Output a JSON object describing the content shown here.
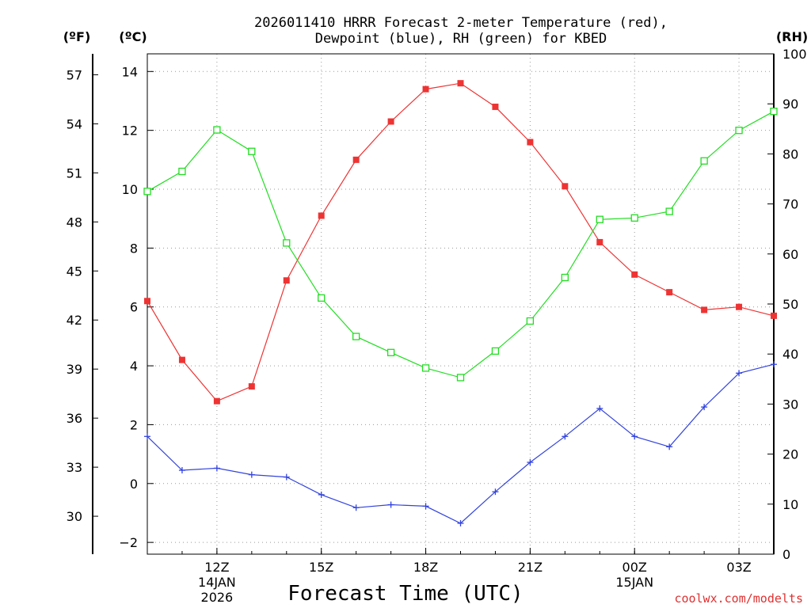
{
  "chart_data": {
    "type": "line",
    "title_line1": "2026011410 HRRR Forecast 2-meter Temperature (red),",
    "title_line2": "Dewpoint (blue), RH (green) for KBED",
    "xlabel": "Forecast Time (UTC)",
    "credit": "coolwx.com/modelts",
    "units": {
      "fahrenheit": "(ºF)",
      "celsius": "(ºC)",
      "rh": "(RH)"
    },
    "x_hours": [
      10,
      11,
      12,
      13,
      14,
      15,
      16,
      17,
      18,
      19,
      20,
      21,
      22,
      23,
      24,
      25,
      26,
      27,
      28
    ],
    "xlim": [
      10,
      28
    ],
    "ylim_celsius": [
      -2.4,
      14.6
    ],
    "ylim_rh": [
      0,
      100
    ],
    "x_ticks": [
      {
        "hour": 12,
        "label": "12Z",
        "date": "14JAN",
        "year": "2026"
      },
      {
        "hour": 15,
        "label": "15Z"
      },
      {
        "hour": 18,
        "label": "18Z"
      },
      {
        "hour": 21,
        "label": "21Z"
      },
      {
        "hour": 24,
        "label": "00Z",
        "date": "15JAN"
      },
      {
        "hour": 27,
        "label": "03Z"
      }
    ],
    "celsius_ticks": [
      "14",
      "12",
      "10",
      "8",
      "6",
      "4",
      "2",
      "0",
      "−2"
    ],
    "fahrenheit_ticks": [
      "57",
      "54",
      "51",
      "48",
      "45",
      "42",
      "39",
      "36",
      "33",
      "30"
    ],
    "rh_ticks": [
      "100",
      "90",
      "80",
      "70",
      "60",
      "50",
      "40",
      "30",
      "20",
      "10",
      "0"
    ],
    "series": [
      {
        "name": "Temperature",
        "unit": "°C",
        "color": "#ee3333",
        "marker": "filled-square",
        "values": [
          6.2,
          4.2,
          2.8,
          3.3,
          6.9,
          9.1,
          11.0,
          12.3,
          13.4,
          13.6,
          12.8,
          11.6,
          10.1,
          8.2,
          7.1,
          6.5,
          5.9,
          6.0,
          5.7
        ]
      },
      {
        "name": "Dewpoint",
        "unit": "°C",
        "color": "#3344dd",
        "marker": "plus",
        "values": [
          1.6,
          0.45,
          0.52,
          0.3,
          0.22,
          -0.38,
          -0.82,
          -0.72,
          -0.77,
          -1.35,
          -0.28,
          0.72,
          1.6,
          2.55,
          1.6,
          1.25,
          2.6,
          3.75,
          4.05
        ]
      },
      {
        "name": "RH",
        "unit": "%",
        "color": "#22dd22",
        "marker": "open-square",
        "values": [
          72.5,
          76.5,
          84.8,
          80.5,
          62.2,
          51.2,
          43.5,
          40.3,
          37.2,
          35.3,
          40.6,
          46.6,
          55.3,
          66.9,
          67.2,
          68.5,
          78.6,
          84.7,
          88.5
        ]
      }
    ]
  }
}
